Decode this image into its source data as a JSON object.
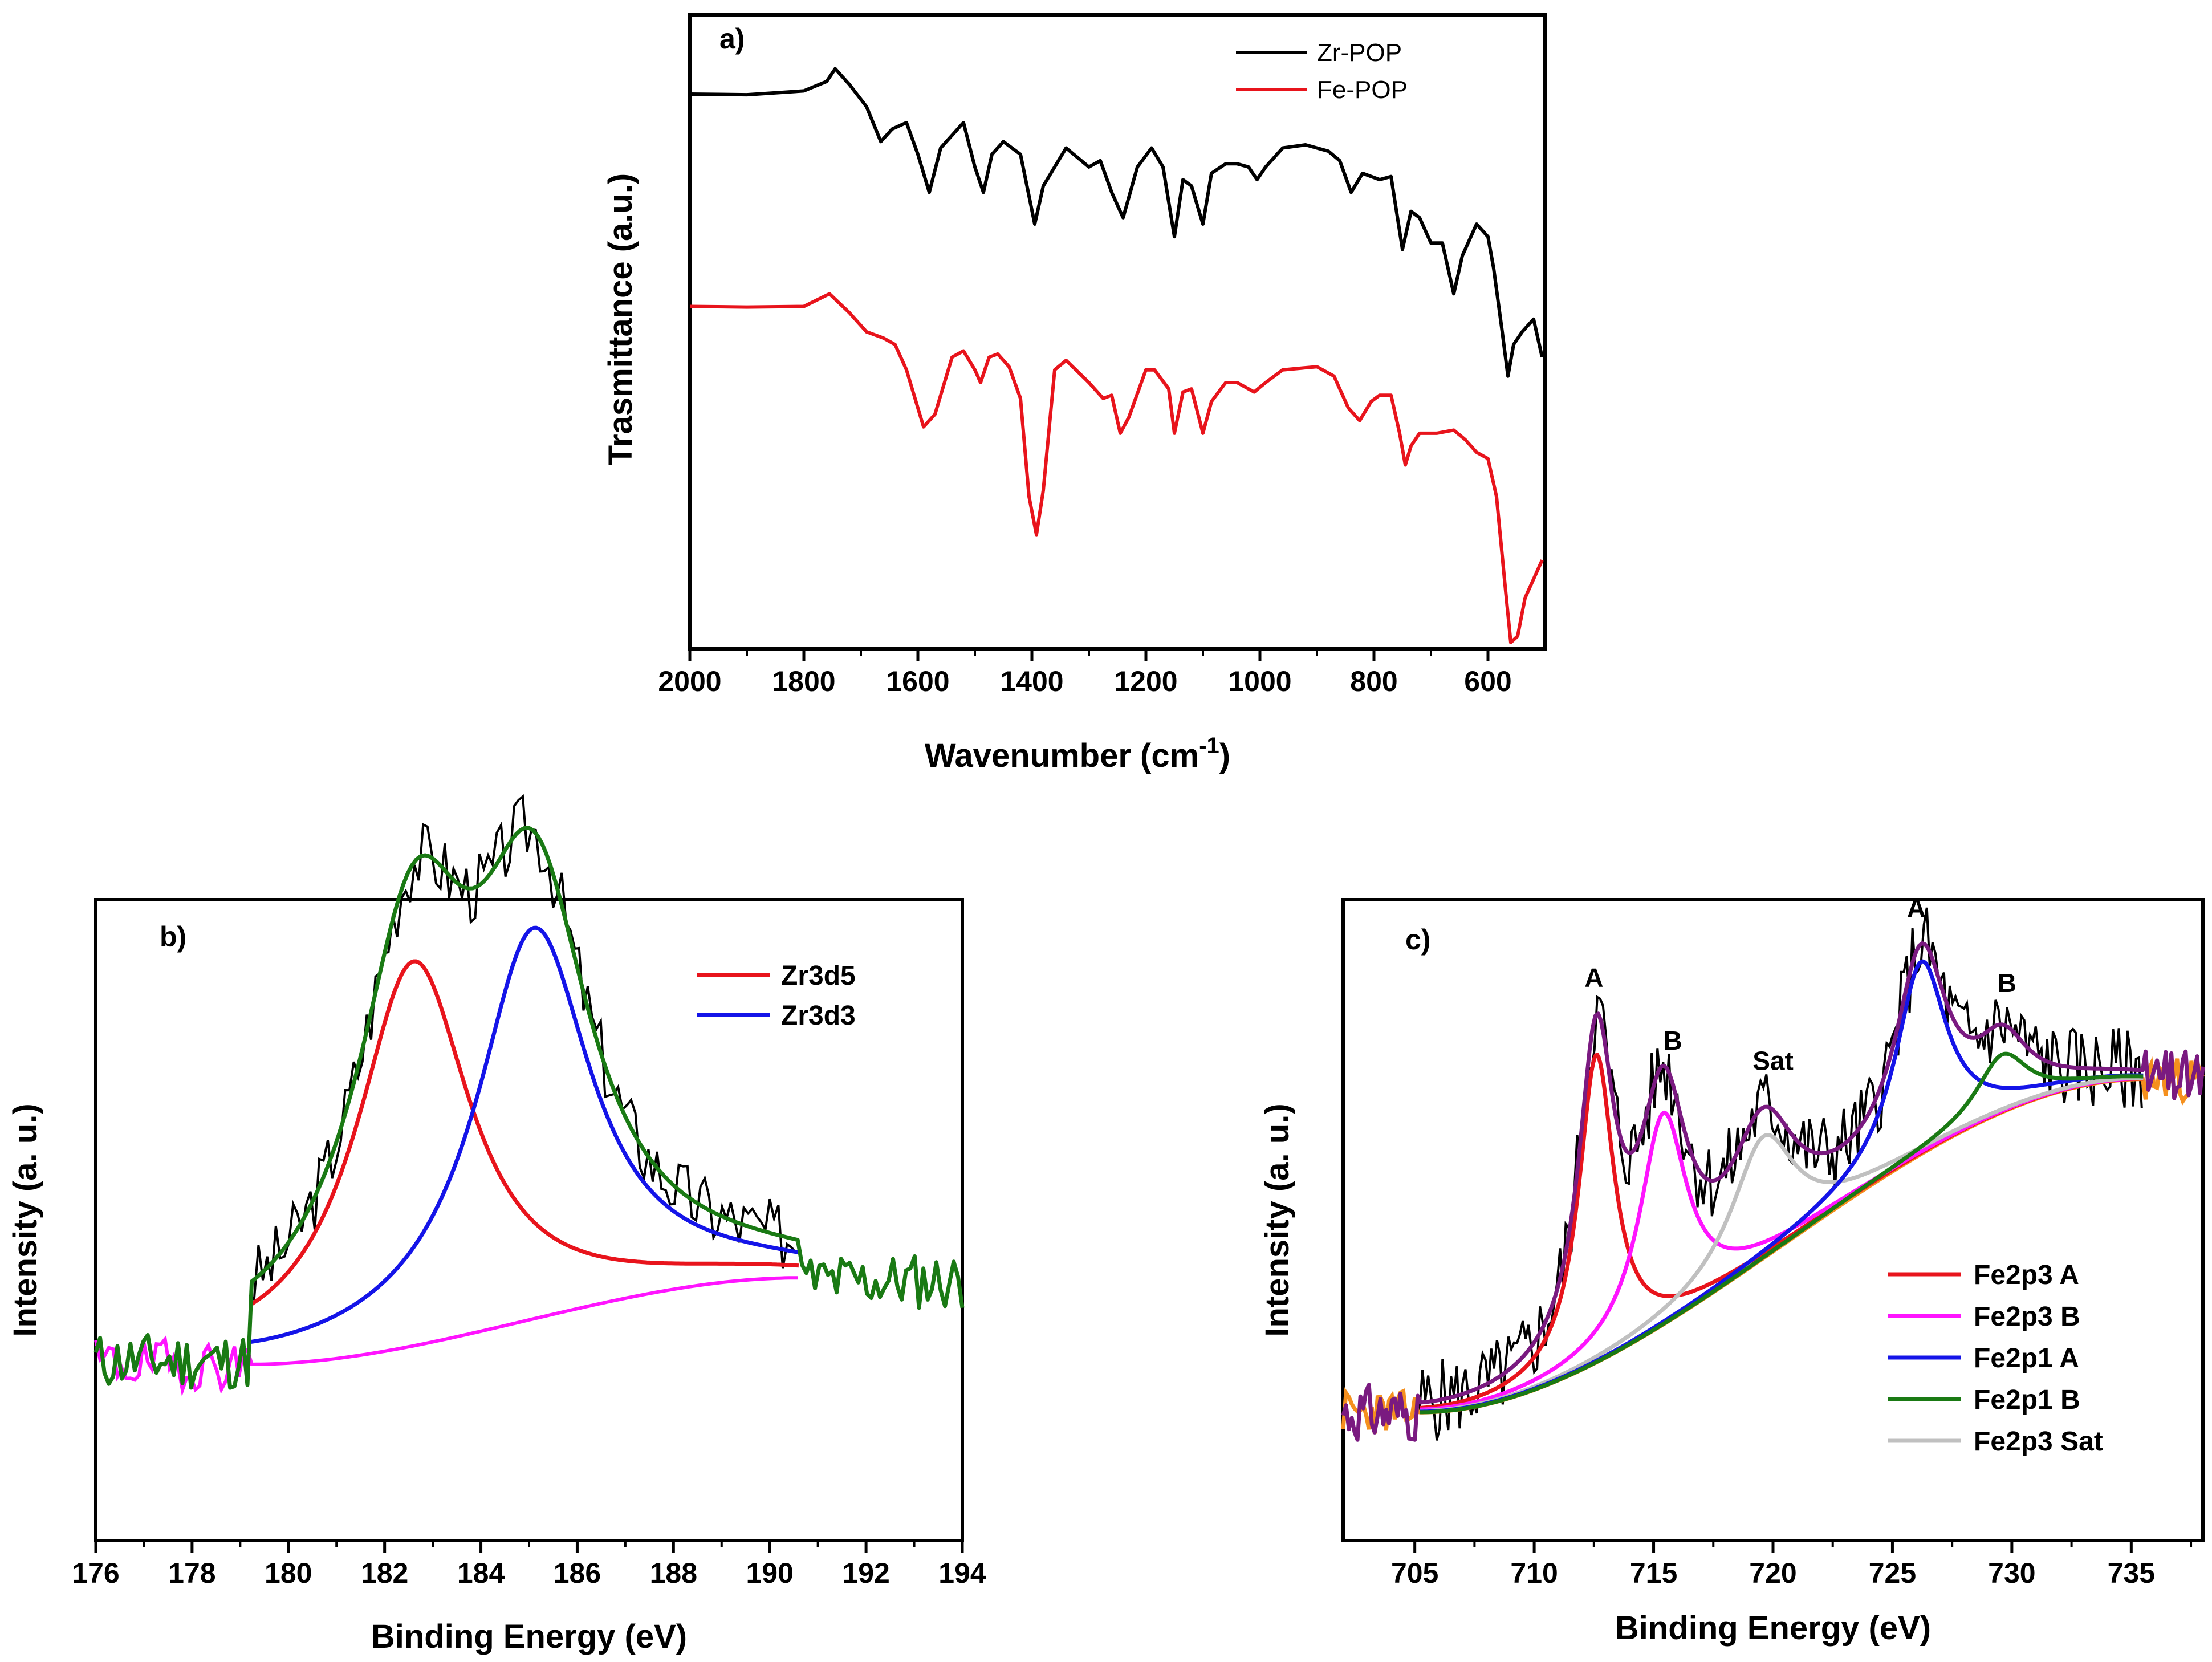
{
  "chart_data": [
    {
      "panel": "a)",
      "type": "line",
      "xlabel": "Wavenumber (cm",
      "xlabel_sup": "-1",
      "xlabel_tail": ")",
      "ylabel": "Trasmittance (a.u.)",
      "xlim": [
        2000,
        500
      ],
      "ylim": [
        0,
        1
      ],
      "xticks": [
        2000,
        1800,
        1600,
        1400,
        1200,
        1000,
        800,
        600
      ],
      "legend": [
        {
          "name": "Zr-POP",
          "color": "#000000"
        },
        {
          "name": "Fe-POP",
          "color": "#e8141c"
        }
      ],
      "series": [
        {
          "name": "Zr-POP",
          "color": "#000000",
          "points": [
            [
              2000,
              0.875
            ],
            [
              1900,
              0.874
            ],
            [
              1800,
              0.88
            ],
            [
              1760,
              0.895
            ],
            [
              1745,
              0.915
            ],
            [
              1720,
              0.89
            ],
            [
              1690,
              0.855
            ],
            [
              1665,
              0.8
            ],
            [
              1645,
              0.82
            ],
            [
              1620,
              0.83
            ],
            [
              1600,
              0.78
            ],
            [
              1580,
              0.72
            ],
            [
              1560,
              0.79
            ],
            [
              1520,
              0.83
            ],
            [
              1500,
              0.76
            ],
            [
              1485,
              0.72
            ],
            [
              1470,
              0.78
            ],
            [
              1450,
              0.8
            ],
            [
              1420,
              0.78
            ],
            [
              1395,
              0.67
            ],
            [
              1380,
              0.73
            ],
            [
              1340,
              0.79
            ],
            [
              1300,
              0.76
            ],
            [
              1280,
              0.77
            ],
            [
              1260,
              0.72
            ],
            [
              1240,
              0.68
            ],
            [
              1215,
              0.76
            ],
            [
              1190,
              0.79
            ],
            [
              1170,
              0.76
            ],
            [
              1150,
              0.65
            ],
            [
              1135,
              0.74
            ],
            [
              1120,
              0.73
            ],
            [
              1100,
              0.67
            ],
            [
              1085,
              0.75
            ],
            [
              1060,
              0.765
            ],
            [
              1040,
              0.765
            ],
            [
              1020,
              0.76
            ],
            [
              1005,
              0.74
            ],
            [
              990,
              0.76
            ],
            [
              960,
              0.79
            ],
            [
              920,
              0.795
            ],
            [
              880,
              0.785
            ],
            [
              860,
              0.77
            ],
            [
              840,
              0.72
            ],
            [
              820,
              0.75
            ],
            [
              790,
              0.74
            ],
            [
              770,
              0.745
            ],
            [
              750,
              0.63
            ],
            [
              735,
              0.69
            ],
            [
              720,
              0.68
            ],
            [
              700,
              0.64
            ],
            [
              680,
              0.64
            ],
            [
              660,
              0.56
            ],
            [
              645,
              0.62
            ],
            [
              620,
              0.67
            ],
            [
              600,
              0.65
            ],
            [
              590,
              0.6
            ],
            [
              575,
              0.5
            ],
            [
              565,
              0.43
            ],
            [
              555,
              0.48
            ],
            [
              540,
              0.5
            ],
            [
              520,
              0.52
            ],
            [
              505,
              0.46
            ]
          ]
        },
        {
          "name": "Fe-POP",
          "color": "#e8141c",
          "points": [
            [
              2000,
              0.54
            ],
            [
              1900,
              0.539
            ],
            [
              1800,
              0.54
            ],
            [
              1755,
              0.56
            ],
            [
              1720,
              0.53
            ],
            [
              1690,
              0.5
            ],
            [
              1660,
              0.49
            ],
            [
              1640,
              0.48
            ],
            [
              1620,
              0.44
            ],
            [
              1590,
              0.35
            ],
            [
              1570,
              0.37
            ],
            [
              1540,
              0.46
            ],
            [
              1520,
              0.47
            ],
            [
              1500,
              0.44
            ],
            [
              1490,
              0.42
            ],
            [
              1475,
              0.46
            ],
            [
              1460,
              0.465
            ],
            [
              1440,
              0.445
            ],
            [
              1420,
              0.395
            ],
            [
              1405,
              0.24
            ],
            [
              1392,
              0.18
            ],
            [
              1380,
              0.25
            ],
            [
              1360,
              0.44
            ],
            [
              1340,
              0.455
            ],
            [
              1300,
              0.42
            ],
            [
              1275,
              0.395
            ],
            [
              1260,
              0.4
            ],
            [
              1245,
              0.34
            ],
            [
              1230,
              0.365
            ],
            [
              1200,
              0.44
            ],
            [
              1185,
              0.44
            ],
            [
              1160,
              0.41
            ],
            [
              1150,
              0.34
            ],
            [
              1135,
              0.405
            ],
            [
              1120,
              0.41
            ],
            [
              1100,
              0.34
            ],
            [
              1085,
              0.39
            ],
            [
              1060,
              0.42
            ],
            [
              1040,
              0.42
            ],
            [
              1010,
              0.405
            ],
            [
              990,
              0.42
            ],
            [
              960,
              0.44
            ],
            [
              900,
              0.445
            ],
            [
              870,
              0.43
            ],
            [
              845,
              0.38
            ],
            [
              825,
              0.36
            ],
            [
              805,
              0.39
            ],
            [
              790,
              0.4
            ],
            [
              770,
              0.4
            ],
            [
              755,
              0.34
            ],
            [
              745,
              0.29
            ],
            [
              735,
              0.32
            ],
            [
              720,
              0.34
            ],
            [
              690,
              0.34
            ],
            [
              660,
              0.345
            ],
            [
              640,
              0.33
            ],
            [
              620,
              0.31
            ],
            [
              600,
              0.3
            ],
            [
              585,
              0.24
            ],
            [
              570,
              0.1
            ],
            [
              560,
              0.01
            ],
            [
              548,
              0.02
            ],
            [
              535,
              0.08
            ],
            [
              520,
              0.11
            ],
            [
              505,
              0.14
            ]
          ]
        }
      ]
    },
    {
      "panel": "b)",
      "type": "line",
      "xlabel": "Binding Energy (eV)",
      "ylabel": "Intensity (a. u.)",
      "xlim": [
        176,
        194
      ],
      "ylim": [
        0,
        1
      ],
      "xticks": [
        176,
        178,
        180,
        182,
        184,
        186,
        188,
        190,
        192,
        194
      ],
      "legend": [
        {
          "name": "Zr3d5",
          "color": "#e8141c"
        },
        {
          "name": "Zr3d3",
          "color": "#1414e8"
        }
      ],
      "peaks": [
        {
          "name": "Zr3d5",
          "center": 182.6,
          "height": 0.6,
          "width": 1.45,
          "color": "#e8141c"
        },
        {
          "name": "Zr3d3",
          "center": 185.1,
          "height": 0.61,
          "width": 1.45,
          "color": "#1414e8"
        }
      ],
      "background": {
        "start": 179.2,
        "end": 190.6,
        "low": 0.275,
        "high": 0.41,
        "color": "#ff14ff"
      },
      "raw_color": "#000000",
      "envelope_color": "#1a7a14"
    },
    {
      "panel": "c)",
      "type": "line",
      "xlabel": "Binding Energy (eV)",
      "ylabel": "Intensity (a. u.)",
      "xlim": [
        702,
        738
      ],
      "ylim": [
        0,
        1
      ],
      "xticks": [
        705,
        710,
        715,
        720,
        725,
        730,
        735
      ],
      "legend": [
        {
          "name": "Fe2p3 A",
          "color": "#e8141c"
        },
        {
          "name": "Fe2p3 B",
          "color": "#ff14ff"
        },
        {
          "name": "Fe2p1 A",
          "color": "#1414e8"
        },
        {
          "name": "Fe2p1 B",
          "color": "#1a7a14"
        },
        {
          "name": "Fe2p3 Sat",
          "color": "#c0c0c0"
        }
      ],
      "annotations": [
        {
          "text": "A",
          "x": 712.5,
          "color": "#e8141c"
        },
        {
          "text": "B",
          "x": 715.8,
          "color": "#ff14ff"
        },
        {
          "text": "Sat",
          "x": 720.0,
          "color": "#c0c0c0"
        },
        {
          "text": "A",
          "x": 726.0,
          "color": "#1414e8"
        },
        {
          "text": "B",
          "x": 729.8,
          "color": "#1a7a14"
        }
      ],
      "peaks": [
        {
          "name": "Fe2p3 A",
          "center": 712.6,
          "height": 0.48,
          "width": 0.9,
          "color": "#e8141c"
        },
        {
          "name": "Fe2p3 B",
          "center": 715.4,
          "height": 0.33,
          "width": 1.2,
          "color": "#ff14ff"
        },
        {
          "name": "Fe2p3 Sat",
          "center": 719.6,
          "height": 0.19,
          "width": 1.6,
          "color": "#c0c0c0"
        },
        {
          "name": "Fe2p1 A",
          "center": 726.2,
          "height": 0.3,
          "width": 1.3,
          "color": "#1414e8"
        },
        {
          "name": "Fe2p1 B",
          "center": 729.6,
          "height": 0.09,
          "width": 1.3,
          "color": "#1a7a14"
        }
      ],
      "background": {
        "start": 705.2,
        "end": 735.5,
        "low": 0.2,
        "high": 0.72,
        "color": "#f5901e"
      },
      "raw_color": "#000000",
      "envelope_color": "#7a1a80"
    }
  ]
}
